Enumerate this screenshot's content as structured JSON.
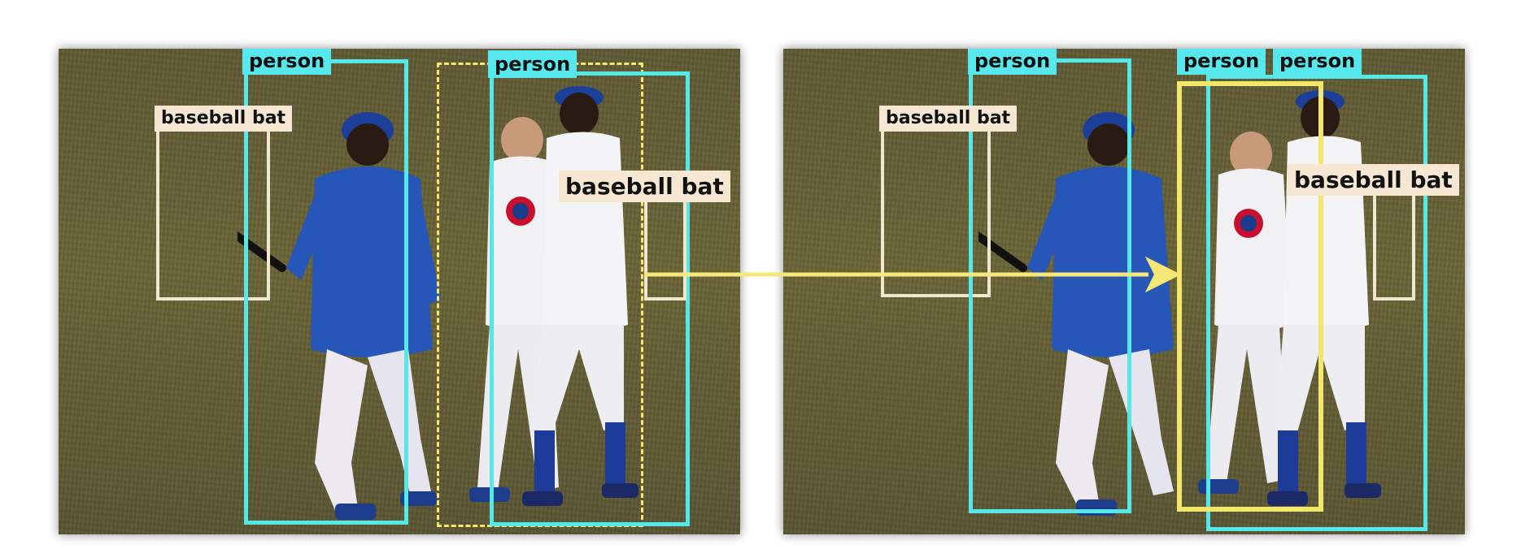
{
  "labels": {
    "person": "person",
    "baseball_bat": "baseball bat"
  },
  "colors": {
    "person_box": "#54e8e8",
    "bat_box": "#f3e6cf",
    "highlight": "#f2e66b",
    "grass": "#645e35",
    "jersey_blue": "#1f4fa8"
  },
  "panels": [
    {
      "name": "left",
      "detections": [
        "person",
        "person",
        "baseball bat",
        "baseball bat"
      ]
    },
    {
      "name": "right",
      "detections": [
        "person",
        "person",
        "person",
        "baseball bat",
        "baseball bat"
      ]
    }
  ]
}
